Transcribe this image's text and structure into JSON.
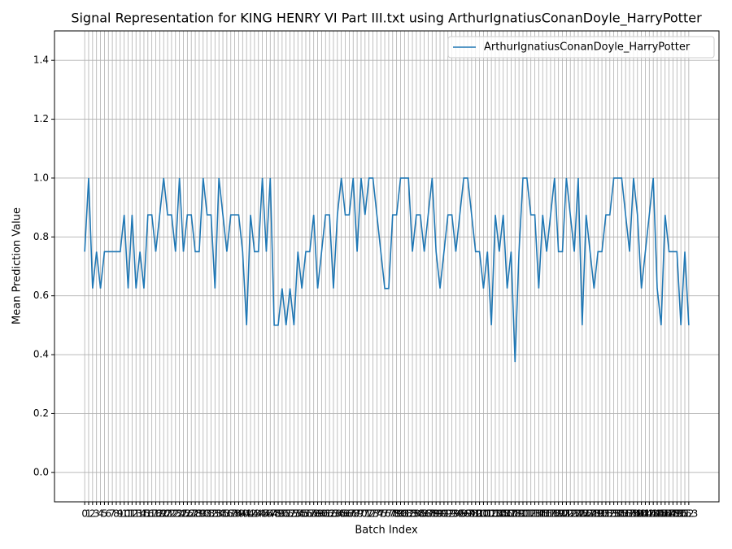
{
  "chart_data": {
    "type": "line",
    "title": "Signal Representation for KING HENRY VI Part III.txt using ArthurIgnatiusConanDoyle_HarryPotter",
    "x_label": "Batch Index",
    "y_label": "Mean Prediction Value",
    "x": [
      0,
      1,
      2,
      3,
      4,
      5,
      6,
      7,
      8,
      9,
      10,
      11,
      12,
      13,
      14,
      15,
      16,
      17,
      18,
      19,
      20,
      21,
      22,
      23,
      24,
      25,
      26,
      27,
      28,
      29,
      30,
      31,
      32,
      33,
      34,
      35,
      36,
      37,
      38,
      39,
      40,
      41,
      42,
      43,
      44,
      45,
      46,
      47,
      48,
      49,
      50,
      51,
      52,
      53,
      54,
      55,
      56,
      57,
      58,
      59,
      60,
      61,
      62,
      63,
      64,
      65,
      66,
      67,
      68,
      69,
      70,
      71,
      72,
      73,
      74,
      75,
      76,
      77,
      78,
      79,
      80,
      81,
      82,
      83,
      84,
      85,
      86,
      87,
      88,
      89,
      90,
      91,
      92,
      93,
      94,
      95,
      96,
      97,
      98,
      99,
      100,
      101,
      102,
      103,
      104,
      105,
      106,
      107,
      108,
      109,
      110,
      111,
      112,
      113,
      114,
      115,
      116,
      117,
      118,
      119,
      120,
      121,
      122,
      123,
      124,
      125,
      126,
      127,
      128,
      129,
      130,
      131,
      132,
      133,
      134,
      135,
      136,
      137,
      138,
      139,
      140,
      141,
      142,
      143,
      144,
      145,
      146,
      147,
      148,
      149,
      150,
      151,
      152,
      153
    ],
    "series": [
      {
        "name": "ArthurIgnatiusConanDoyle_HarryPotter",
        "color": "#1f77b4",
        "values": [
          0.75,
          1.0,
          0.625,
          0.75,
          0.625,
          0.75,
          0.75,
          0.75,
          0.75,
          0.75,
          0.875,
          0.625,
          0.875,
          0.625,
          0.75,
          0.625,
          0.875,
          0.875,
          0.75,
          0.875,
          1.0,
          0.875,
          0.875,
          0.75,
          1.0,
          0.75,
          0.875,
          0.875,
          0.75,
          0.75,
          1.0,
          0.875,
          0.875,
          0.625,
          1.0,
          0.875,
          0.75,
          0.875,
          0.875,
          0.875,
          0.75,
          0.5,
          0.875,
          0.75,
          0.75,
          1.0,
          0.75,
          1.0,
          0.5,
          0.5,
          0.625,
          0.5,
          0.625,
          0.5,
          0.75,
          0.625,
          0.75,
          0.75,
          0.875,
          0.625,
          0.75,
          0.875,
          0.875,
          0.625,
          0.875,
          1.0,
          0.875,
          0.875,
          1.0,
          0.75,
          1.0,
          0.875,
          1.0,
          1.0,
          0.875,
          0.75,
          0.625,
          0.625,
          0.875,
          0.875,
          1.0,
          1.0,
          1.0,
          0.75,
          0.875,
          0.875,
          0.75,
          0.875,
          1.0,
          0.75,
          0.625,
          0.75,
          0.875,
          0.875,
          0.75,
          0.875,
          1.0,
          1.0,
          0.875,
          0.75,
          0.75,
          0.625,
          0.75,
          0.5,
          0.875,
          0.75,
          0.875,
          0.625,
          0.75,
          0.375,
          0.75,
          1.0,
          1.0,
          0.875,
          0.875,
          0.625,
          0.875,
          0.75,
          0.875,
          1.0,
          0.75,
          0.75,
          1.0,
          0.875,
          0.75,
          1.0,
          0.5,
          0.875,
          0.75,
          0.625,
          0.75,
          0.75,
          0.875,
          0.875,
          1.0,
          1.0,
          1.0,
          0.875,
          0.75,
          1.0,
          0.875,
          0.625,
          0.75,
          0.875,
          1.0,
          0.625,
          0.5,
          0.875,
          0.75,
          0.75,
          0.75,
          0.5,
          0.75,
          0.5
        ]
      }
    ],
    "xlim": [
      -7.65,
      160.65
    ],
    "ylim": [
      -0.1,
      1.5
    ],
    "yticks": [
      {
        "value": 0,
        "label": "0.0"
      },
      0.2,
      0.4,
      0.6,
      0.8,
      {
        "value": 1,
        "label": "1.0"
      },
      1.2,
      1.4
    ],
    "grid": true,
    "legend": "upper right"
  }
}
